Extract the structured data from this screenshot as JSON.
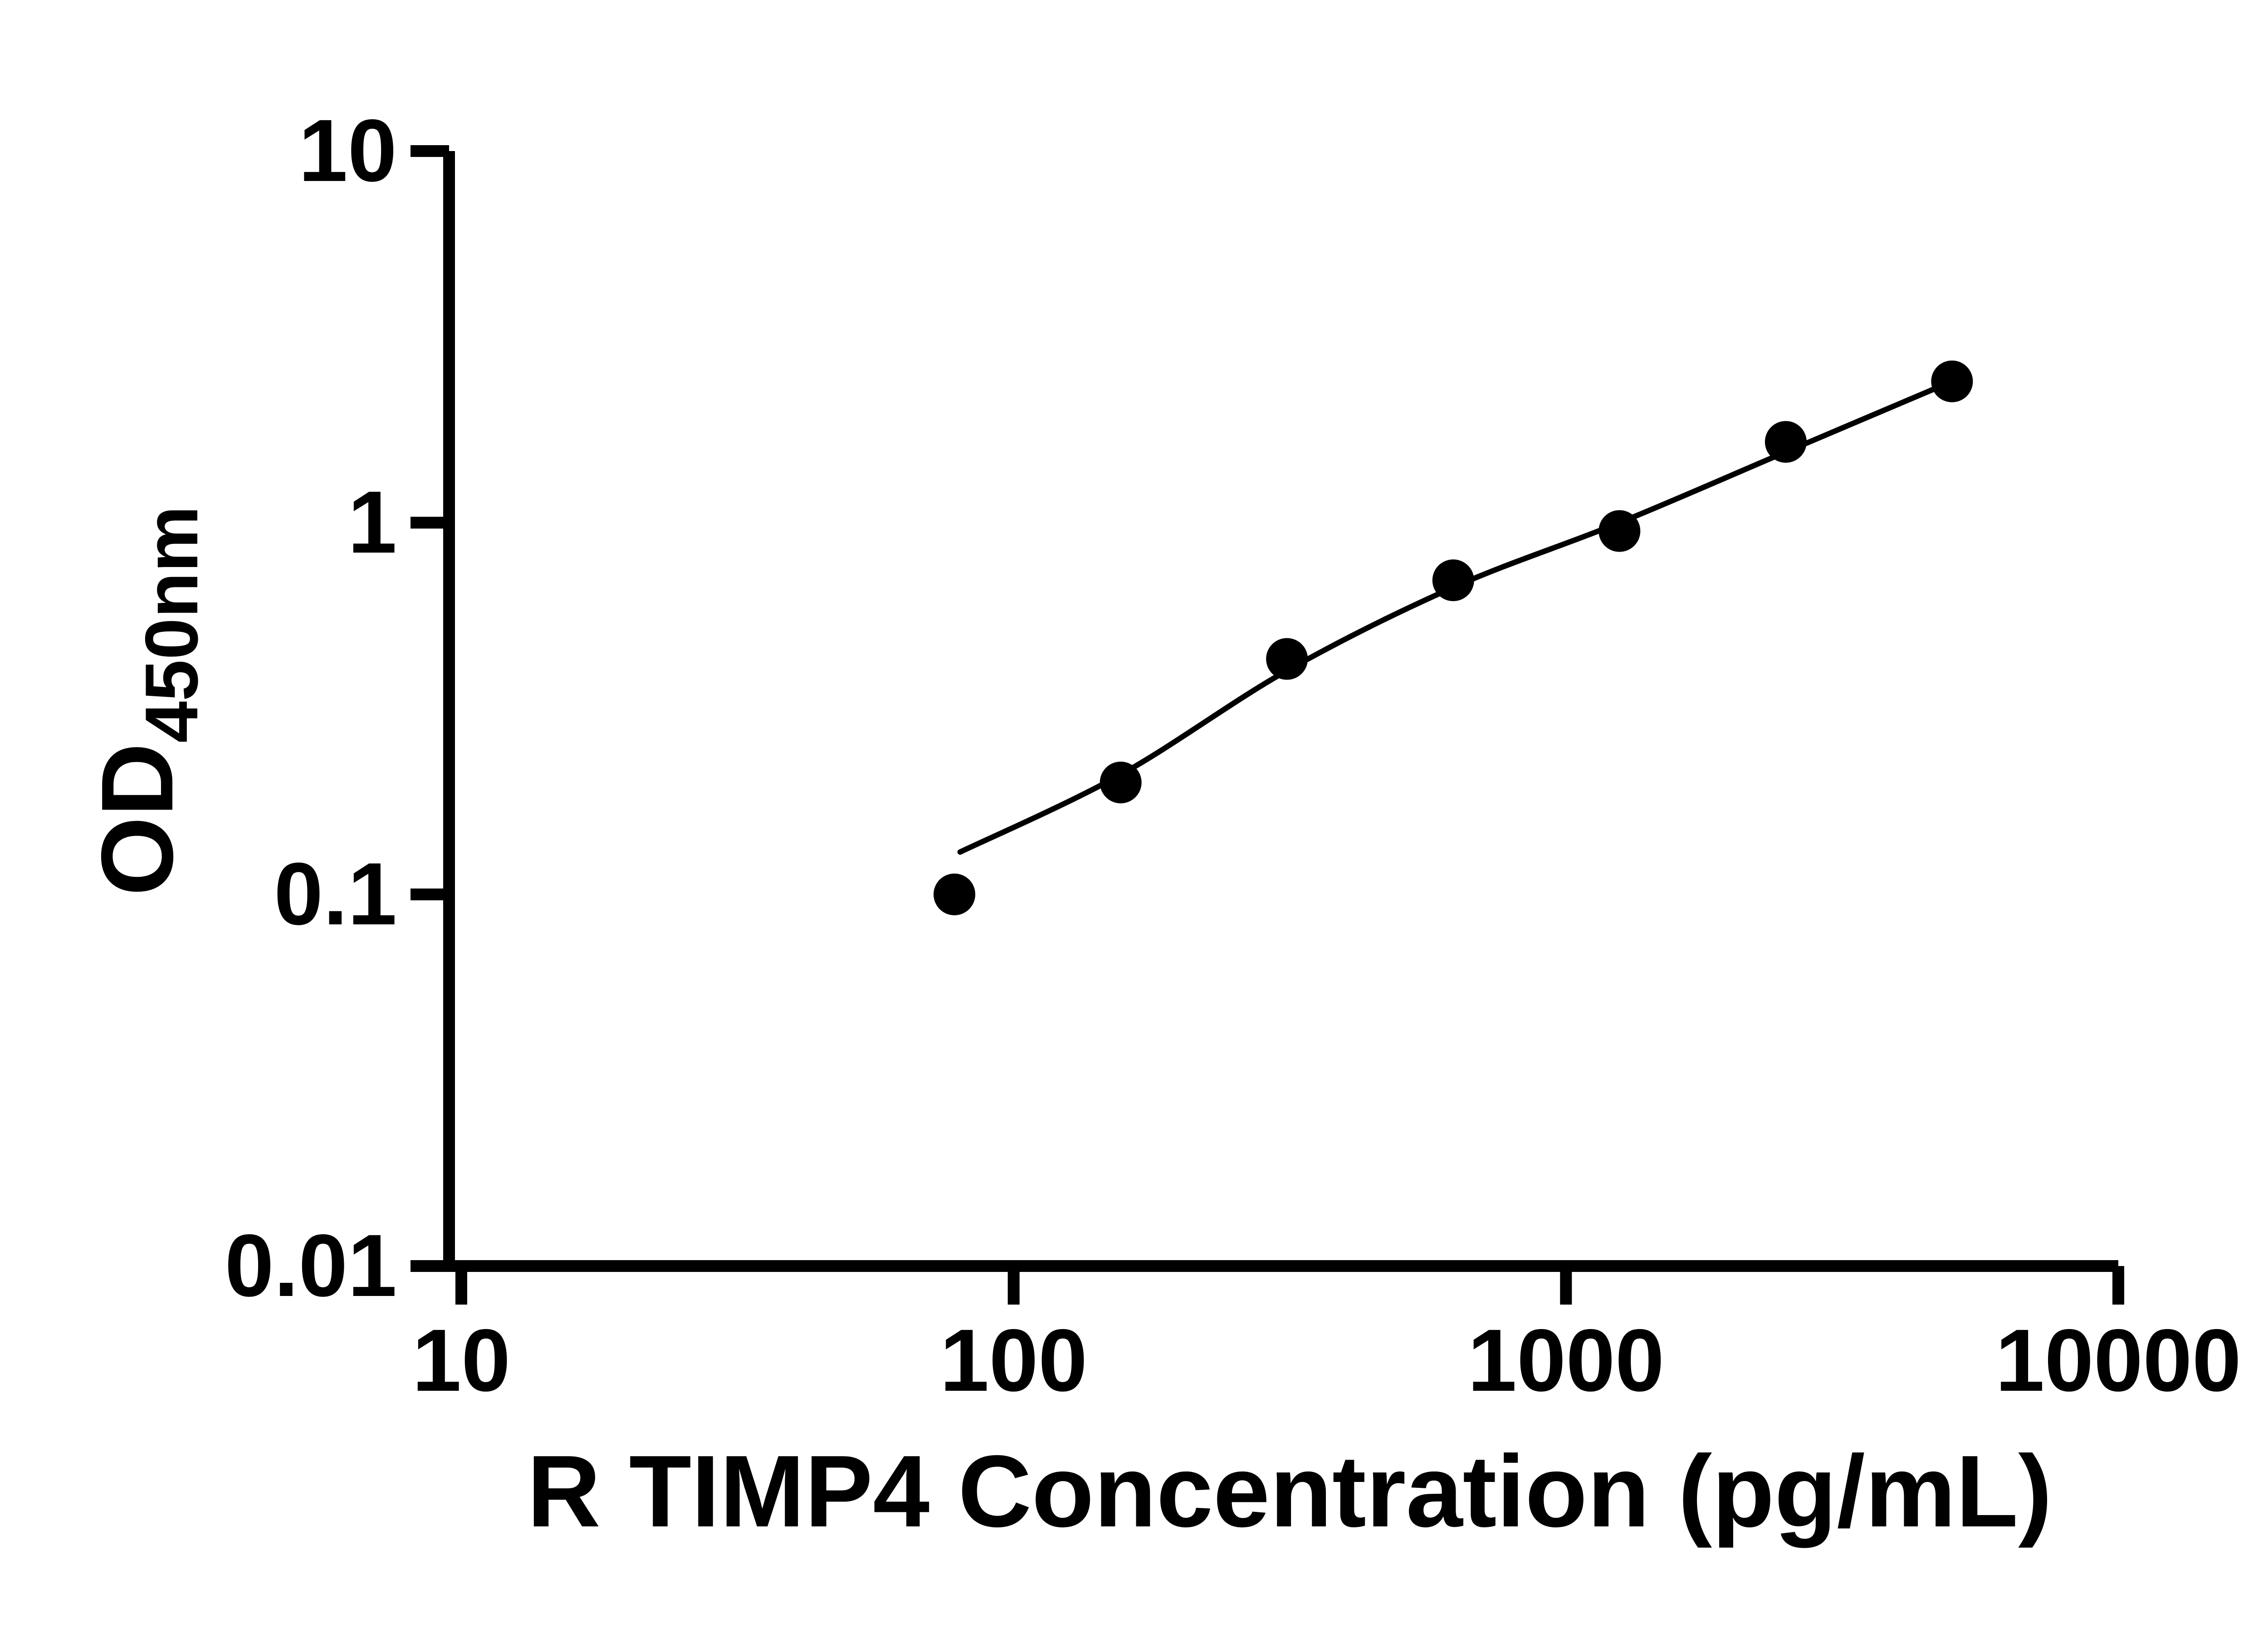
{
  "chart_data": {
    "type": "scatter",
    "title": "",
    "xlabel": "R TIMP4 Concentration (pg/mL)",
    "ylabel": "OD",
    "ylabel_sub": "450nm",
    "x_scale": "log",
    "y_scale": "log",
    "xlim": [
      10,
      10000
    ],
    "ylim": [
      0.01,
      10
    ],
    "x_ticks": [
      10,
      100,
      1000,
      10000
    ],
    "x_tick_labels": [
      "10",
      "100",
      "1000",
      "10000"
    ],
    "y_ticks": [
      0.01,
      0.1,
      1,
      10
    ],
    "y_tick_labels": [
      "0.01",
      "0.1",
      "1",
      "10"
    ],
    "grid": false,
    "legend": false,
    "series": [
      {
        "name": "standards",
        "type": "scatter",
        "marker": "filled-circle",
        "x": [
          78.125,
          156.25,
          312.5,
          625,
          1250,
          2500,
          5000
        ],
        "y": [
          0.1,
          0.2,
          0.43,
          0.7,
          0.95,
          1.65,
          2.4
        ]
      },
      {
        "name": "fit-curve",
        "type": "line",
        "x": [
          80,
          156.25,
          312.5,
          625,
          1250,
          2500,
          5000
        ],
        "y": [
          0.13,
          0.21,
          0.4,
          0.67,
          1.0,
          1.55,
          2.4
        ]
      }
    ],
    "colors": {
      "points": "#000000",
      "curve": "#000000",
      "axis": "#000000",
      "background": "#ffffff"
    }
  }
}
